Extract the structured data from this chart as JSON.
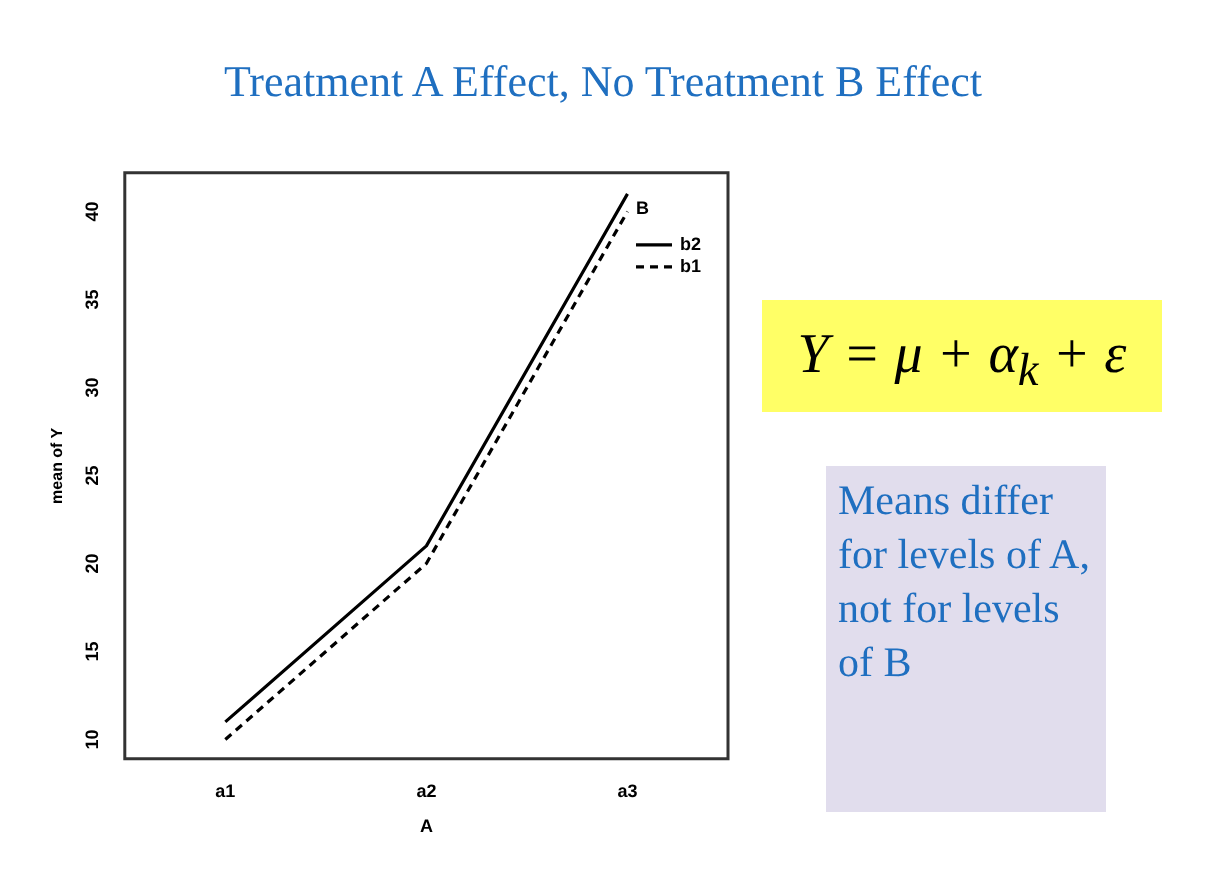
{
  "chart_data": {
    "type": "line",
    "title": "Treatment A Effect, No Treatment B Effect",
    "xlabel": "A",
    "ylabel": "mean of Y",
    "legend_title": "B",
    "categories": [
      "a1",
      "a2",
      "a3"
    ],
    "series": [
      {
        "name": "b2",
        "color": "#000000",
        "values": [
          11,
          21,
          41
        ],
        "line_style": "solid"
      },
      {
        "name": "b1",
        "color": "#000000",
        "values": [
          10,
          20,
          40
        ],
        "line_style": "dashed"
      }
    ],
    "ylim": [
      8.9,
      42.2
    ],
    "yticks": [
      10,
      15,
      20,
      25,
      30,
      35,
      40
    ],
    "grid": false,
    "legend": "top right",
    "marker": "none",
    "annotations": [
      "Y = μ + α$_{k}$ + ε",
      "Means differ for levels of A, not for levels of B"
    ]
  }
}
